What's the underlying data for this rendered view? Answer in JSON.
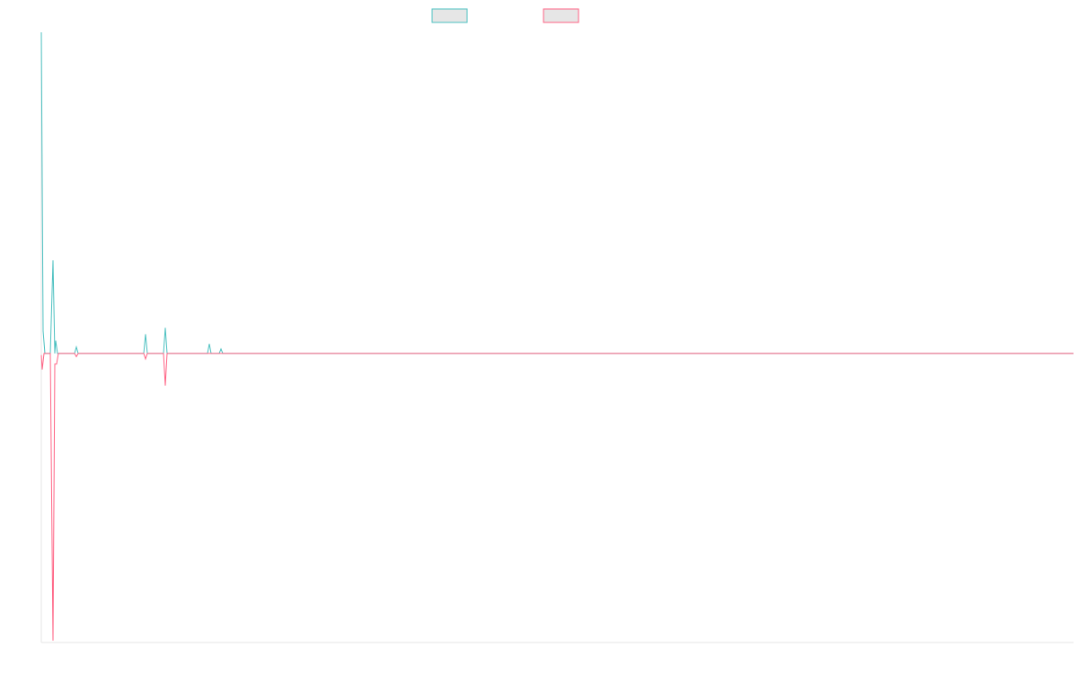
{
  "chart_data": {
    "type": "line",
    "xlim": [
      0,
      1149
    ],
    "ylim": [
      -0.9,
      1
    ],
    "series": [
      {
        "color": "#4bc0c0",
        "x": [
          0,
          2,
          4,
          10,
          13,
          15,
          16,
          18,
          37,
          39,
          41,
          114,
          116,
          118,
          136,
          138,
          140,
          185,
          187,
          189,
          198,
          200,
          202,
          1149
        ],
        "values": [
          1.0,
          0.07,
          0,
          0,
          0.29,
          0,
          0.04,
          0,
          0,
          0.02,
          0,
          0,
          0.06,
          0,
          0,
          0.08,
          0,
          0,
          0.03,
          0,
          0,
          0.014,
          0,
          0
        ]
      },
      {
        "color": "#ff6384",
        "x": [
          0,
          1,
          3,
          10,
          13,
          15,
          17,
          19,
          37,
          39,
          41,
          114,
          116,
          118,
          136,
          138,
          140,
          1149
        ],
        "values": [
          -0.005,
          -0.05,
          0,
          0,
          -0.894,
          -0.033,
          -0.033,
          0,
          0,
          -0.01,
          0,
          0,
          -0.017,
          0,
          0,
          -0.1,
          0,
          0
        ]
      }
    ]
  }
}
